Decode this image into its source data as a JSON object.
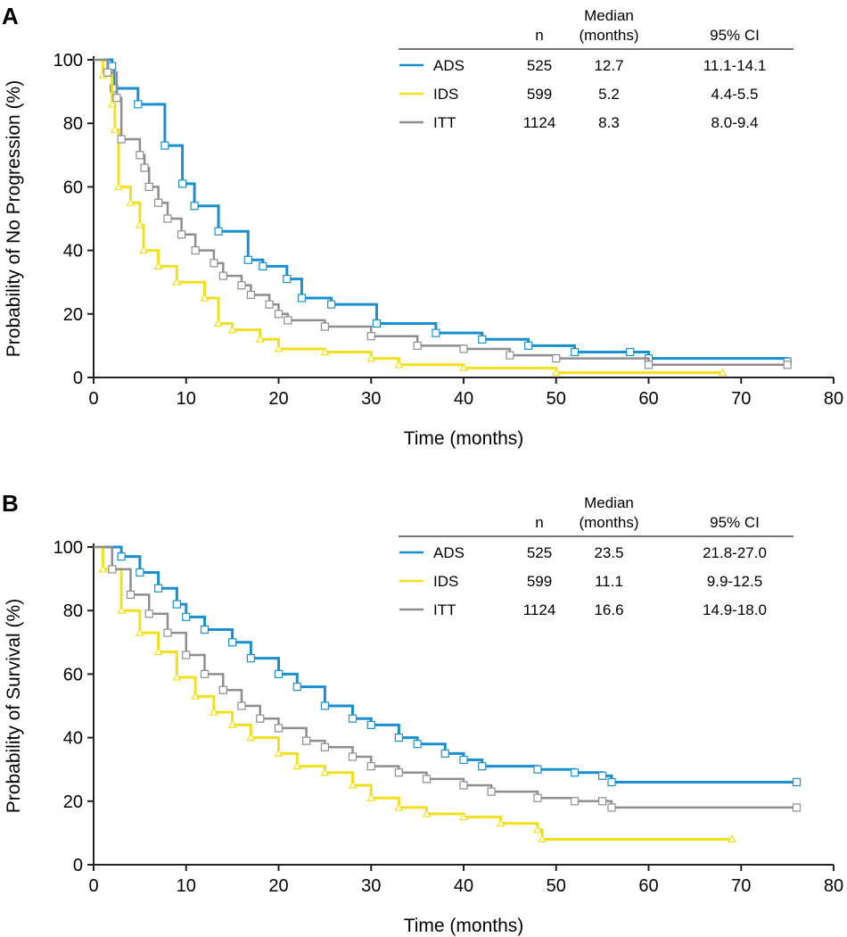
{
  "colors": {
    "ADS": "#1a8fd0",
    "IDS": "#f2e01c",
    "ITT": "#8e8e91",
    "axis": "#222222"
  },
  "chart_data": [
    {
      "type": "line",
      "panel": "A",
      "title": "",
      "xlabel": "Time (months)",
      "ylabel": "Probability of No Progression (%)",
      "xlim": [
        0,
        80
      ],
      "ylim": [
        0,
        100
      ],
      "xticks": [
        "0",
        "10",
        "20",
        "30",
        "40",
        "50",
        "60",
        "70",
        "80"
      ],
      "yticks": [
        "0",
        "20",
        "40",
        "60",
        "80",
        "100"
      ],
      "legend_headers": {
        "n": "n",
        "median": "Median\n(months)",
        "ci": "95% CI"
      },
      "legend_placement": "top-right",
      "series": [
        {
          "name": "ADS",
          "n": "525",
          "median": "12.7",
          "ci": "11.1-14.1",
          "x": [
            0,
            2,
            2.2,
            4.8,
            7.7,
            9.6,
            10.9,
            13.5,
            16.7,
            18.3,
            20.9,
            22.5,
            25.7,
            30.6,
            37,
            42,
            47,
            52,
            58,
            60,
            75
          ],
          "y": [
            100,
            98,
            91,
            86,
            73,
            61,
            54,
            46,
            37,
            35,
            31,
            25,
            23,
            17,
            14,
            12,
            10,
            8,
            8,
            6,
            5
          ]
        },
        {
          "name": "IDS",
          "n": "599",
          "median": "5.2",
          "ci": "4.4-5.5",
          "x": [
            0,
            1,
            2,
            2.3,
            2.7,
            4,
            5,
            5.4,
            7,
            9,
            12,
            13.5,
            15,
            18,
            20,
            25,
            30,
            33,
            40,
            50,
            68
          ],
          "y": [
            100,
            95,
            86,
            78,
            60,
            55,
            48,
            40,
            35,
            30,
            25,
            17,
            15,
            12,
            9,
            8,
            6,
            4,
            3,
            1.5,
            1.5
          ]
        },
        {
          "name": "ITT",
          "n": "1124",
          "median": "8.3",
          "ci": "8.0-9.4",
          "x": [
            0,
            1.5,
            2.5,
            3,
            5,
            5.5,
            6,
            7,
            8,
            9.5,
            11,
            13,
            14,
            16,
            17,
            19,
            20,
            21,
            25,
            30,
            35,
            40,
            45,
            50,
            60,
            75
          ],
          "y": [
            100,
            96,
            88,
            75,
            70,
            66,
            60,
            55,
            50,
            45,
            40,
            36,
            32,
            29,
            26,
            23,
            20,
            18,
            16,
            13,
            10,
            9,
            7,
            6,
            4,
            4
          ]
        }
      ]
    },
    {
      "type": "line",
      "panel": "B",
      "title": "",
      "xlabel": "Time (months)",
      "ylabel": "Probability of Survival (%)",
      "xlim": [
        0,
        80
      ],
      "ylim": [
        0,
        100
      ],
      "xticks": [
        "0",
        "10",
        "20",
        "30",
        "40",
        "50",
        "60",
        "70",
        "80"
      ],
      "yticks": [
        "0",
        "20",
        "40",
        "60",
        "80",
        "100"
      ],
      "legend_headers": {
        "n": "n",
        "median": "Median\n(months)",
        "ci": "95% CI"
      },
      "legend_placement": "top-right",
      "series": [
        {
          "name": "ADS",
          "n": "525",
          "median": "23.5",
          "ci": "21.8-27.0",
          "x": [
            0,
            3,
            5,
            7,
            9,
            10,
            12,
            15,
            17,
            20,
            22,
            25,
            28,
            30,
            33,
            35,
            38,
            40,
            42,
            48,
            52,
            55,
            56,
            76
          ],
          "y": [
            100,
            97,
            92,
            87,
            82,
            78,
            74,
            70,
            65,
            60,
            56,
            50,
            46,
            44,
            40,
            38,
            35,
            33,
            31,
            30,
            29,
            28,
            26,
            26
          ]
        },
        {
          "name": "IDS",
          "n": "599",
          "median": "11.1",
          "ci": "9.9-12.5",
          "x": [
            0,
            1,
            3,
            5,
            7,
            9,
            11,
            13,
            15,
            17,
            20,
            22,
            25,
            28,
            30,
            33,
            36,
            40,
            44,
            48,
            48.5,
            69
          ],
          "y": [
            100,
            93,
            80,
            73,
            67,
            59,
            53,
            48,
            44,
            40,
            35,
            31,
            29,
            25,
            21,
            18,
            16,
            15,
            13,
            11,
            8,
            8
          ]
        },
        {
          "name": "ITT",
          "n": "1124",
          "median": "16.6",
          "ci": "14.9-18.0",
          "x": [
            0,
            2,
            4,
            6,
            8,
            10,
            12,
            14,
            16,
            18,
            20,
            23,
            25,
            28,
            30,
            33,
            36,
            40,
            43,
            48,
            52,
            55,
            56,
            76
          ],
          "y": [
            100,
            93,
            85,
            79,
            73,
            66,
            60,
            55,
            50,
            46,
            43,
            39,
            37,
            34,
            31,
            29,
            27,
            25,
            23,
            21,
            20,
            20,
            18,
            18
          ]
        }
      ]
    }
  ]
}
